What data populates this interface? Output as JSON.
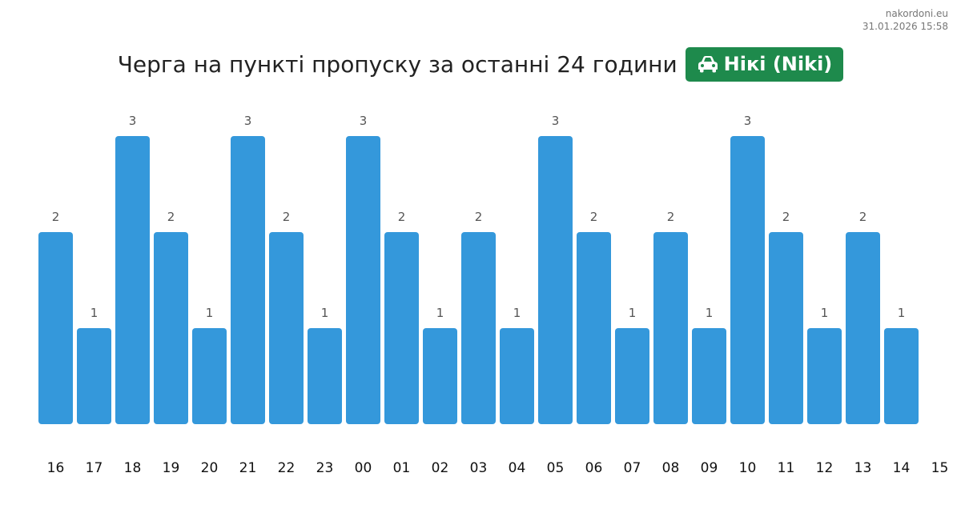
{
  "site": {
    "name": "nakordoni.eu",
    "timestamp": "31.01.2026 15:58"
  },
  "header": {
    "title": "Черга на пункті пропуску за останні 24 години",
    "checkpoint": "Нікі (Niki)",
    "checkpoint_icon": "car-icon"
  },
  "colors": {
    "bar": "#3498db",
    "badge": "#1e8a4c"
  },
  "chart_data": {
    "type": "bar",
    "categories": [
      "16",
      "17",
      "18",
      "19",
      "20",
      "21",
      "22",
      "23",
      "00",
      "01",
      "02",
      "03",
      "04",
      "05",
      "06",
      "07",
      "08",
      "09",
      "10",
      "11",
      "12",
      "13",
      "14",
      "15"
    ],
    "values": [
      2,
      1,
      3,
      2,
      1,
      3,
      2,
      1,
      3,
      2,
      1,
      2,
      1,
      3,
      2,
      1,
      2,
      1,
      3,
      2,
      1,
      2,
      1,
      null
    ],
    "title": "",
    "xlabel": "",
    "ylabel": "",
    "ylim": [
      0,
      3
    ],
    "grid": false,
    "legend": "none"
  }
}
